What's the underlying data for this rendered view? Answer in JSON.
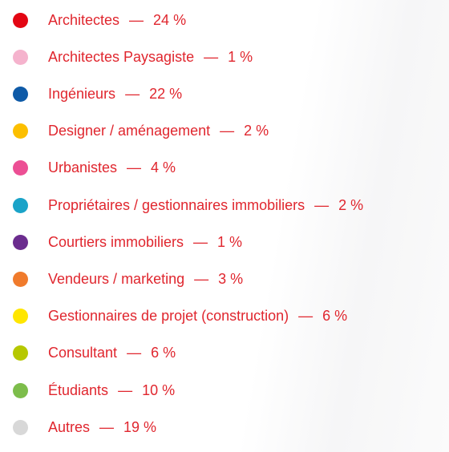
{
  "separator": "—",
  "items": [
    {
      "label": "Architectes",
      "value": "24 %",
      "color": "#e30613"
    },
    {
      "label": "Architectes Paysagiste",
      "value": "1 %",
      "color": "#f5b3cd"
    },
    {
      "label": "Ingénieurs",
      "value": "22 %",
      "color": "#0e5aa7"
    },
    {
      "label": "Designer / aménagement",
      "value": "2 %",
      "color": "#fcbf00"
    },
    {
      "label": "Urbanistes",
      "value": "4 %",
      "color": "#ec4f94"
    },
    {
      "label": "Propriétaires / gestionnaires immobiliers",
      "value": "2 %",
      "color": "#1aa3c8"
    },
    {
      "label": "Courtiers immobiliers",
      "value": "1 %",
      "color": "#6b2c8e"
    },
    {
      "label": "Vendeurs / marketing",
      "value": "3 %",
      "color": "#f07b2c"
    },
    {
      "label": "Gestionnaires de projet (construction)",
      "value": "6 %",
      "color": "#ffe600"
    },
    {
      "label": "Consultant",
      "value": "6 %",
      "color": "#b6c800"
    },
    {
      "label": "Étudiants",
      "value": "10 %",
      "color": "#7dbd4b"
    },
    {
      "label": "Autres",
      "value": "19 %",
      "color": "#d8d8d8"
    }
  ]
}
